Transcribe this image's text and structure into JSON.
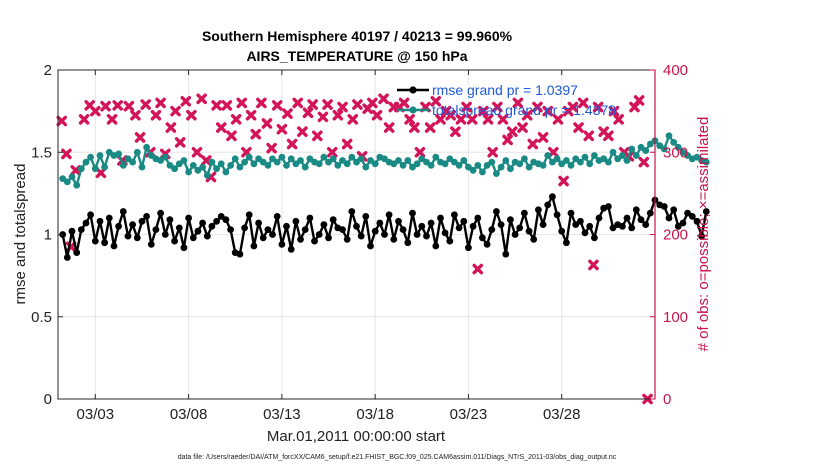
{
  "colors": {
    "rmse": "#000000",
    "totalspread": "#1a8a84",
    "obs": "#d41459",
    "right_axis": "#c8144c",
    "legend_text": "#1f5bd9",
    "grid": "#e6e6e6",
    "axis": "#262626"
  },
  "chart_data": {
    "type": "line",
    "title": [
      "Southern Hemisphere 40197 / 40213 = 99.960%",
      "AIRS_TEMPERATURE @ 150 hPa"
    ],
    "xlabel": "Mar.01,2011 00:00:00 start",
    "ylabel_left": "rmse and totalspread",
    "ylabel_right": "# of obs: o=possible; ×=assimilated",
    "xlim": [
      1.0,
      33.0
    ],
    "ylim_left": [
      0,
      2
    ],
    "ylim_right": [
      0,
      400
    ],
    "x_ticks": [
      3,
      8,
      13,
      18,
      23,
      28
    ],
    "x_tick_labels": [
      "03/03",
      "03/08",
      "03/13",
      "03/18",
      "03/23",
      "03/28"
    ],
    "y_left_ticks": [
      0,
      0.5,
      1,
      1.5,
      2
    ],
    "y_left_tick_labels": [
      "0",
      "0.5",
      "1",
      "1.5",
      "2"
    ],
    "y_right_ticks": [
      0,
      100,
      200,
      300,
      400
    ],
    "y_right_tick_labels": [
      "0",
      "100",
      "200",
      "300",
      "400"
    ],
    "grid": true,
    "legend_position": "top-right",
    "x_start": 1.25,
    "x_step": 0.25,
    "series": [
      {
        "name": "rmse grand pr = 1.0397",
        "axis": "left",
        "marker": "circle",
        "values": [
          1.0,
          0.86,
          1.02,
          0.89,
          1.03,
          1.07,
          1.12,
          0.96,
          1.08,
          0.95,
          1.1,
          0.93,
          1.05,
          1.14,
          0.99,
          1.06,
          0.98,
          1.08,
          1.11,
          0.94,
          1.03,
          1.13,
          1.0,
          1.09,
          0.96,
          1.04,
          0.92,
          1.1,
          0.98,
          1.02,
          1.07,
          0.99,
          1.05,
          1.08,
          1.11,
          1.09,
          1.03,
          0.89,
          0.88,
          1.04,
          1.12,
          0.93,
          1.07,
          0.98,
          1.03,
          1.0,
          1.11,
          0.94,
          1.05,
          0.91,
          1.08,
          0.97,
          1.03,
          1.1,
          0.96,
          1.0,
          1.06,
          0.98,
          1.09,
          1.04,
          1.03,
          0.97,
          1.14,
          1.05,
          0.99,
          1.11,
          0.93,
          1.02,
          1.07,
          1.0,
          1.12,
          0.97,
          1.08,
          1.03,
          0.95,
          1.13,
          1.0,
          1.05,
          0.99,
          1.07,
          0.93,
          1.1,
          1.01,
          0.96,
          1.12,
          1.04,
          1.08,
          0.92,
          1.05,
          1.1,
          0.98,
          0.94,
          1.03,
          1.14,
          1.06,
          0.88,
          1.09,
          1.0,
          1.04,
          1.13,
          1.02,
          0.97,
          1.15,
          1.06,
          1.18,
          1.23,
          1.12,
          1.02,
          0.95,
          1.13,
          1.06,
          1.08,
          1.01,
          1.05,
          0.98,
          1.1,
          1.16,
          1.17,
          1.04,
          1.06,
          1.05,
          1.1,
          1.04,
          1.15,
          1.09,
          1.06,
          1.13,
          1.21,
          1.18,
          1.17,
          1.1,
          1.15,
          1.05,
          1.07,
          1.13,
          1.11,
          1.08,
          0.99,
          1.14
        ]
      },
      {
        "name": "totalspread grand pr = 1.4378",
        "axis": "left",
        "marker": "circle",
        "values": [
          1.34,
          1.32,
          1.35,
          1.3,
          1.4,
          1.44,
          1.47,
          1.4,
          1.48,
          1.41,
          1.5,
          1.48,
          1.49,
          1.42,
          1.46,
          1.44,
          1.5,
          1.41,
          1.53,
          1.48,
          1.46,
          1.45,
          1.47,
          1.42,
          1.4,
          1.43,
          1.45,
          1.38,
          1.42,
          1.39,
          1.41,
          1.36,
          1.44,
          1.4,
          1.43,
          1.38,
          1.42,
          1.46,
          1.41,
          1.44,
          1.47,
          1.43,
          1.46,
          1.44,
          1.42,
          1.46,
          1.44,
          1.47,
          1.42,
          1.46,
          1.43,
          1.45,
          1.41,
          1.46,
          1.44,
          1.43,
          1.47,
          1.44,
          1.46,
          1.42,
          1.45,
          1.43,
          1.47,
          1.44,
          1.46,
          1.41,
          1.45,
          1.43,
          1.47,
          1.46,
          1.44,
          1.43,
          1.45,
          1.42,
          1.45,
          1.41,
          1.43,
          1.46,
          1.44,
          1.42,
          1.47,
          1.44,
          1.43,
          1.46,
          1.44,
          1.42,
          1.45,
          1.41,
          1.39,
          1.42,
          1.38,
          1.42,
          1.44,
          1.37,
          1.41,
          1.45,
          1.4,
          1.44,
          1.43,
          1.46,
          1.41,
          1.44,
          1.43,
          1.42,
          1.48,
          1.44,
          1.46,
          1.43,
          1.45,
          1.42,
          1.46,
          1.44,
          1.47,
          1.43,
          1.48,
          1.45,
          1.46,
          1.44,
          1.5,
          1.46,
          1.48,
          1.45,
          1.52,
          1.48,
          1.53,
          1.51,
          1.55,
          1.57,
          1.54,
          1.52,
          1.6,
          1.56,
          1.53,
          1.5,
          1.48,
          1.46,
          1.47,
          1.45,
          1.44
        ]
      },
      {
        "name": "# of obs assimilated",
        "axis": "right",
        "marker": "x",
        "points": [
          [
            1.2,
            338
          ],
          [
            1.45,
            298
          ],
          [
            1.7,
            185
          ],
          [
            1.95,
            278
          ],
          [
            2.4,
            340
          ],
          [
            2.7,
            357
          ],
          [
            3.0,
            350
          ],
          [
            3.3,
            275
          ],
          [
            3.55,
            356
          ],
          [
            3.9,
            340
          ],
          [
            4.2,
            357
          ],
          [
            4.45,
            290
          ],
          [
            4.8,
            356
          ],
          [
            5.15,
            345
          ],
          [
            5.4,
            318
          ],
          [
            5.7,
            358
          ],
          [
            5.95,
            300
          ],
          [
            6.25,
            345
          ],
          [
            6.5,
            360
          ],
          [
            6.75,
            298
          ],
          [
            7.05,
            330
          ],
          [
            7.3,
            350
          ],
          [
            7.55,
            312
          ],
          [
            7.85,
            362
          ],
          [
            8.15,
            345
          ],
          [
            8.45,
            300
          ],
          [
            8.7,
            365
          ],
          [
            8.95,
            290
          ],
          [
            9.2,
            270
          ],
          [
            9.5,
            357
          ],
          [
            9.75,
            330
          ],
          [
            10.05,
            357
          ],
          [
            10.3,
            320
          ],
          [
            10.55,
            340
          ],
          [
            10.85,
            360
          ],
          [
            11.1,
            300
          ],
          [
            11.35,
            345
          ],
          [
            11.6,
            322
          ],
          [
            11.9,
            360
          ],
          [
            12.2,
            335
          ],
          [
            12.45,
            305
          ],
          [
            12.75,
            357
          ],
          [
            13.0,
            328
          ],
          [
            13.3,
            347
          ],
          [
            13.55,
            310
          ],
          [
            13.85,
            360
          ],
          [
            14.1,
            325
          ],
          [
            14.4,
            348
          ],
          [
            14.65,
            358
          ],
          [
            14.9,
            320
          ],
          [
            15.2,
            343
          ],
          [
            15.45,
            358
          ],
          [
            15.7,
            300
          ],
          [
            16.0,
            345
          ],
          [
            16.25,
            355
          ],
          [
            16.5,
            310
          ],
          [
            16.8,
            340
          ],
          [
            17.05,
            358
          ],
          [
            17.3,
            295
          ],
          [
            17.6,
            353
          ],
          [
            17.85,
            360
          ],
          [
            18.1,
            345
          ],
          [
            18.45,
            365
          ],
          [
            18.75,
            330
          ],
          [
            19.0,
            355
          ],
          [
            19.3,
            355
          ],
          [
            19.55,
            360
          ],
          [
            19.85,
            340
          ],
          [
            20.1,
            330
          ],
          [
            20.4,
            300
          ],
          [
            20.7,
            355
          ],
          [
            20.95,
            330
          ],
          [
            21.25,
            362
          ],
          [
            21.5,
            340
          ],
          [
            21.8,
            350
          ],
          [
            22.05,
            345
          ],
          [
            22.3,
            325
          ],
          [
            22.6,
            340
          ],
          [
            22.9,
            355
          ],
          [
            23.2,
            340
          ],
          [
            23.5,
            158
          ],
          [
            23.8,
            350
          ],
          [
            24.05,
            340
          ],
          [
            24.3,
            300
          ],
          [
            24.55,
            355
          ],
          [
            24.85,
            340
          ],
          [
            25.1,
            315
          ],
          [
            25.35,
            325
          ],
          [
            25.65,
            360
          ],
          [
            25.9,
            330
          ],
          [
            26.15,
            345
          ],
          [
            26.45,
            310
          ],
          [
            26.7,
            355
          ],
          [
            27.0,
            318
          ],
          [
            27.25,
            350
          ],
          [
            27.55,
            300
          ],
          [
            27.8,
            340
          ],
          [
            28.1,
            265
          ],
          [
            28.35,
            350
          ],
          [
            28.6,
            355
          ],
          [
            28.9,
            330
          ],
          [
            29.15,
            360
          ],
          [
            29.45,
            320
          ],
          [
            29.7,
            163
          ],
          [
            29.95,
            355
          ],
          [
            30.25,
            325
          ],
          [
            30.5,
            320
          ],
          [
            30.8,
            350
          ],
          [
            31.05,
            340
          ],
          [
            31.35,
            300
          ],
          [
            31.6,
            295
          ],
          [
            31.9,
            355
          ],
          [
            32.15,
            363
          ],
          [
            32.4,
            288
          ],
          [
            32.6,
            0
          ]
        ]
      }
    ]
  },
  "footer": {
    "data_file": "data file: /Users/raeder/DAI/ATM_forcXX/CAM6_setup/f.e21.FHIST_BGC.f09_025.CAM6assim.011/Diags_NTrS_2011-03/obs_diag_output.nc"
  }
}
